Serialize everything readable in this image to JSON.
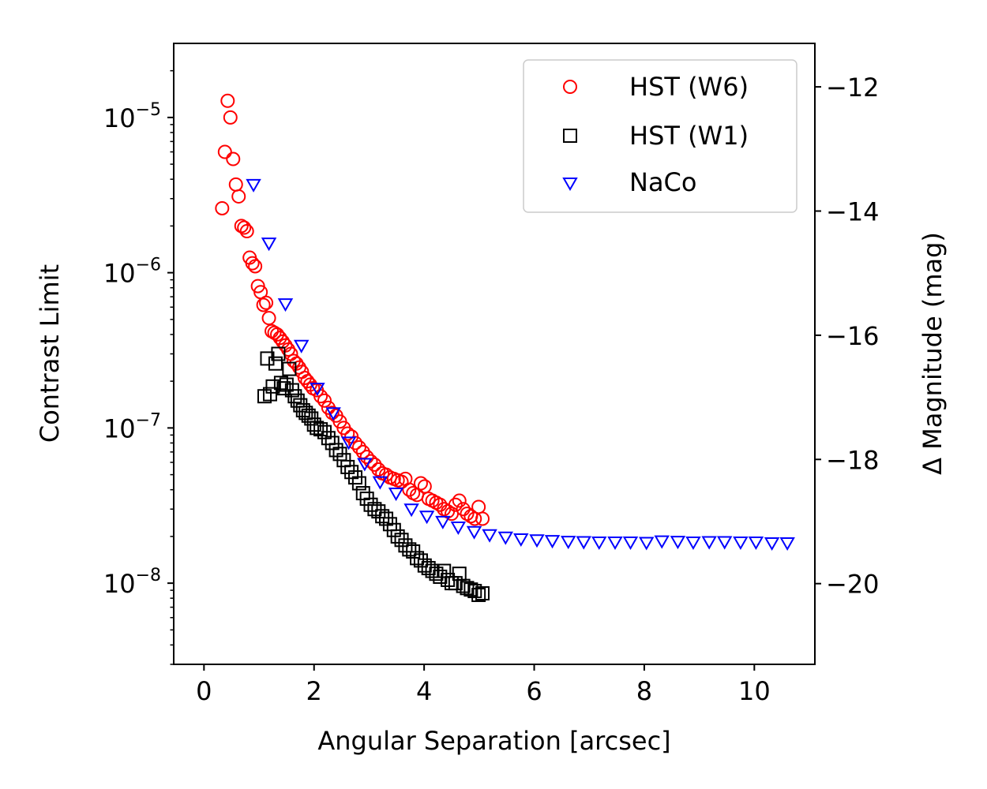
{
  "chart_data": {
    "type": "scatter",
    "title": "",
    "xlabel": "Angular Separation [arcsec]",
    "ylabel": "Contrast Limit",
    "y2label": "Δ Magnitude (mag)",
    "xlim": [
      -0.55,
      11.1
    ],
    "ylim": [
      3e-09,
      3e-05
    ],
    "yscale": "log",
    "y2lim": [
      -11.3,
      -21.3
    ],
    "xticks": [
      0,
      2,
      4,
      6,
      8,
      10
    ],
    "xtick_labels": [
      "0",
      "2",
      "4",
      "6",
      "8",
      "10"
    ],
    "ytick_exponents": [
      -5,
      -6,
      -7,
      -8
    ],
    "ytick_base": "10",
    "ytick_labels": [
      "−5",
      "−6",
      "−7",
      "−8"
    ],
    "y2ticks": [
      -12,
      -14,
      -16,
      -18,
      -20
    ],
    "y2tick_labels": [
      "−12",
      "−14",
      "−16",
      "−18",
      "−20"
    ],
    "legend_position": "top-right",
    "series": [
      {
        "name": "HST (W6)",
        "marker": "circle",
        "color": "#ff0000",
        "points": [
          [
            0.33,
            2.6e-06
          ],
          [
            0.38,
            6e-06
          ],
          [
            0.43,
            1.28e-05
          ],
          [
            0.48,
            1e-05
          ],
          [
            0.53,
            5.4e-06
          ],
          [
            0.58,
            3.7e-06
          ],
          [
            0.63,
            3.1e-06
          ],
          [
            0.68,
            2e-06
          ],
          [
            0.73,
            1.95e-06
          ],
          [
            0.78,
            1.85e-06
          ],
          [
            0.83,
            1.25e-06
          ],
          [
            0.88,
            1.15e-06
          ],
          [
            0.93,
            1.1e-06
          ],
          [
            0.98,
            8.2e-07
          ],
          [
            1.03,
            7.5e-07
          ],
          [
            1.08,
            6.2e-07
          ],
          [
            1.13,
            6.4e-07
          ],
          [
            1.18,
            5.1e-07
          ],
          [
            1.23,
            4.2e-07
          ],
          [
            1.28,
            4.1e-07
          ],
          [
            1.33,
            4e-07
          ],
          [
            1.38,
            3.8e-07
          ],
          [
            1.43,
            3.6e-07
          ],
          [
            1.48,
            3.4e-07
          ],
          [
            1.53,
            3.2e-07
          ],
          [
            1.58,
            3e-07
          ],
          [
            1.63,
            2.7e-07
          ],
          [
            1.68,
            2.6e-07
          ],
          [
            1.73,
            2.45e-07
          ],
          [
            1.78,
            2.3e-07
          ],
          [
            1.83,
            2.1e-07
          ],
          [
            1.88,
            2e-07
          ],
          [
            1.93,
            1.9e-07
          ],
          [
            1.98,
            1.8e-07
          ],
          [
            2.05,
            1.75e-07
          ],
          [
            2.12,
            1.6e-07
          ],
          [
            2.19,
            1.5e-07
          ],
          [
            2.26,
            1.35e-07
          ],
          [
            2.33,
            1.25e-07
          ],
          [
            2.4,
            1.2e-07
          ],
          [
            2.47,
            1.1e-07
          ],
          [
            2.54,
            1e-07
          ],
          [
            2.61,
            9.2e-08
          ],
          [
            2.68,
            8.8e-08
          ],
          [
            2.75,
            8e-08
          ],
          [
            2.82,
            7.5e-08
          ],
          [
            2.89,
            7e-08
          ],
          [
            2.96,
            6.5e-08
          ],
          [
            3.03,
            6.1e-08
          ],
          [
            3.1,
            5.8e-08
          ],
          [
            3.17,
            5.4e-08
          ],
          [
            3.24,
            5.1e-08
          ],
          [
            3.31,
            5e-08
          ],
          [
            3.38,
            4.8e-08
          ],
          [
            3.45,
            4.7e-08
          ],
          [
            3.52,
            4.6e-08
          ],
          [
            3.59,
            4.5e-08
          ],
          [
            3.66,
            4.7e-08
          ],
          [
            3.73,
            4e-08
          ],
          [
            3.8,
            3.8e-08
          ],
          [
            3.87,
            3.7e-08
          ],
          [
            3.94,
            4.4e-08
          ],
          [
            4.01,
            4.2e-08
          ],
          [
            4.08,
            3.5e-08
          ],
          [
            4.15,
            3.4e-08
          ],
          [
            4.22,
            3.3e-08
          ],
          [
            4.29,
            3.2e-08
          ],
          [
            4.36,
            3e-08
          ],
          [
            4.43,
            2.9e-08
          ],
          [
            4.5,
            2.8e-08
          ],
          [
            4.57,
            3.2e-08
          ],
          [
            4.64,
            3.4e-08
          ],
          [
            4.71,
            3e-08
          ],
          [
            4.78,
            2.8e-08
          ],
          [
            4.85,
            2.7e-08
          ],
          [
            4.92,
            2.6e-08
          ],
          [
            4.99,
            3.1e-08
          ],
          [
            5.06,
            2.6e-08
          ]
        ]
      },
      {
        "name": "HST (W1)",
        "marker": "square",
        "color": "#000000",
        "points": [
          [
            1.1,
            1.6e-07
          ],
          [
            1.15,
            2.8e-07
          ],
          [
            1.2,
            1.65e-07
          ],
          [
            1.25,
            1.85e-07
          ],
          [
            1.3,
            2.6e-07
          ],
          [
            1.35,
            3e-07
          ],
          [
            1.4,
            1.95e-07
          ],
          [
            1.45,
            1.8e-07
          ],
          [
            1.5,
            1.9e-07
          ],
          [
            1.55,
            2.4e-07
          ],
          [
            1.6,
            1.75e-07
          ],
          [
            1.65,
            1.6e-07
          ],
          [
            1.7,
            1.5e-07
          ],
          [
            1.75,
            1.4e-07
          ],
          [
            1.8,
            1.3e-07
          ],
          [
            1.85,
            1.25e-07
          ],
          [
            1.9,
            1.2e-07
          ],
          [
            1.95,
            1.15e-07
          ],
          [
            2.0,
            1.05e-07
          ],
          [
            2.05,
            1e-07
          ],
          [
            2.12,
            9.8e-08
          ],
          [
            2.19,
            9.4e-08
          ],
          [
            2.26,
            8.6e-08
          ],
          [
            2.33,
            8e-08
          ],
          [
            2.4,
            7.2e-08
          ],
          [
            2.47,
            6.8e-08
          ],
          [
            2.54,
            6.2e-08
          ],
          [
            2.61,
            5.6e-08
          ],
          [
            2.68,
            5.2e-08
          ],
          [
            2.75,
            4.8e-08
          ],
          [
            2.82,
            4.4e-08
          ],
          [
            2.89,
            3.8e-08
          ],
          [
            2.96,
            3.5e-08
          ],
          [
            3.03,
            3.2e-08
          ],
          [
            3.1,
            3e-08
          ],
          [
            3.17,
            2.9e-08
          ],
          [
            3.24,
            2.7e-08
          ],
          [
            3.31,
            2.6e-08
          ],
          [
            3.38,
            2.4e-08
          ],
          [
            3.45,
            2.2e-08
          ],
          [
            3.52,
            2e-08
          ],
          [
            3.59,
            1.9e-08
          ],
          [
            3.66,
            1.75e-08
          ],
          [
            3.73,
            1.65e-08
          ],
          [
            3.8,
            1.6e-08
          ],
          [
            3.87,
            1.45e-08
          ],
          [
            3.94,
            1.4e-08
          ],
          [
            4.01,
            1.3e-08
          ],
          [
            4.08,
            1.25e-08
          ],
          [
            4.15,
            1.2e-08
          ],
          [
            4.22,
            1.15e-08
          ],
          [
            4.29,
            1.1e-08
          ],
          [
            4.36,
            1.2e-08
          ],
          [
            4.43,
            1.05e-08
          ],
          [
            4.5,
            1e-08
          ],
          [
            4.57,
            1e-08
          ],
          [
            4.64,
            1.15e-08
          ],
          [
            4.71,
            9.6e-09
          ],
          [
            4.78,
            9.3e-09
          ],
          [
            4.85,
            9.1e-09
          ],
          [
            4.92,
            8.9e-09
          ],
          [
            4.99,
            8.4e-09
          ],
          [
            5.06,
            8.6e-09
          ]
        ]
      },
      {
        "name": "NaCo",
        "marker": "triangle-down",
        "color": "#0000ff",
        "points": [
          [
            0.9,
            3.7e-06
          ],
          [
            1.18,
            1.55e-06
          ],
          [
            1.48,
            6.3e-07
          ],
          [
            1.77,
            3.4e-07
          ],
          [
            2.06,
            1.8e-07
          ],
          [
            2.35,
            1.25e-07
          ],
          [
            2.63,
            8.1e-08
          ],
          [
            2.92,
            5.9e-08
          ],
          [
            3.2,
            4.5e-08
          ],
          [
            3.49,
            3.8e-08
          ],
          [
            3.77,
            3e-08
          ],
          [
            4.05,
            2.7e-08
          ],
          [
            4.34,
            2.5e-08
          ],
          [
            4.62,
            2.3e-08
          ],
          [
            4.91,
            2.15e-08
          ],
          [
            5.19,
            2.05e-08
          ],
          [
            5.48,
            1.98e-08
          ],
          [
            5.76,
            1.93e-08
          ],
          [
            6.05,
            1.9e-08
          ],
          [
            6.33,
            1.88e-08
          ],
          [
            6.62,
            1.86e-08
          ],
          [
            6.9,
            1.85e-08
          ],
          [
            7.18,
            1.84e-08
          ],
          [
            7.47,
            1.84e-08
          ],
          [
            7.75,
            1.84e-08
          ],
          [
            8.04,
            1.83e-08
          ],
          [
            8.32,
            1.87e-08
          ],
          [
            8.61,
            1.86e-08
          ],
          [
            8.89,
            1.84e-08
          ],
          [
            9.18,
            1.85e-08
          ],
          [
            9.46,
            1.85e-08
          ],
          [
            9.75,
            1.84e-08
          ],
          [
            10.03,
            1.84e-08
          ],
          [
            10.32,
            1.82e-08
          ],
          [
            10.6,
            1.82e-08
          ]
        ]
      }
    ]
  }
}
